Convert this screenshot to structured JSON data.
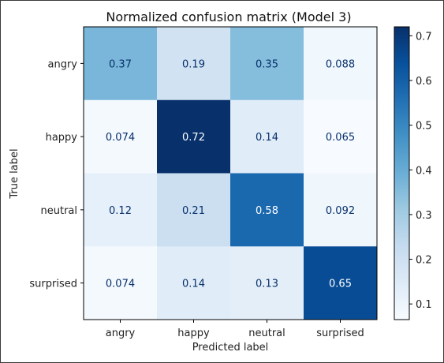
{
  "chart_data": {
    "type": "heatmap",
    "title": "Normalized confusion matrix (Model 3)",
    "xlabel": "Predicted label",
    "ylabel": "True label",
    "x_categories": [
      "angry",
      "happy",
      "neutral",
      "surprised"
    ],
    "y_categories": [
      "angry",
      "happy",
      "neutral",
      "surprised"
    ],
    "values": [
      [
        0.37,
        0.19,
        0.35,
        0.088
      ],
      [
        0.074,
        0.72,
        0.14,
        0.065
      ],
      [
        0.12,
        0.21,
        0.58,
        0.092
      ],
      [
        0.074,
        0.14,
        0.13,
        0.65
      ]
    ],
    "value_labels": [
      [
        "0.37",
        "0.19",
        "0.35",
        "0.088"
      ],
      [
        "0.074",
        "0.72",
        "0.14",
        "0.065"
      ],
      [
        "0.12",
        "0.21",
        "0.58",
        "0.092"
      ],
      [
        "0.074",
        "0.14",
        "0.13",
        "0.65"
      ]
    ],
    "colormap": "Blues",
    "colorbar": {
      "range": [
        0.065,
        0.72
      ],
      "ticks": [
        0.1,
        0.2,
        0.3,
        0.4,
        0.5,
        0.6,
        0.7
      ],
      "tick_labels": [
        "0.1",
        "0.2",
        "0.3",
        "0.4",
        "0.5",
        "0.6",
        "0.7"
      ]
    },
    "grid": false
  }
}
